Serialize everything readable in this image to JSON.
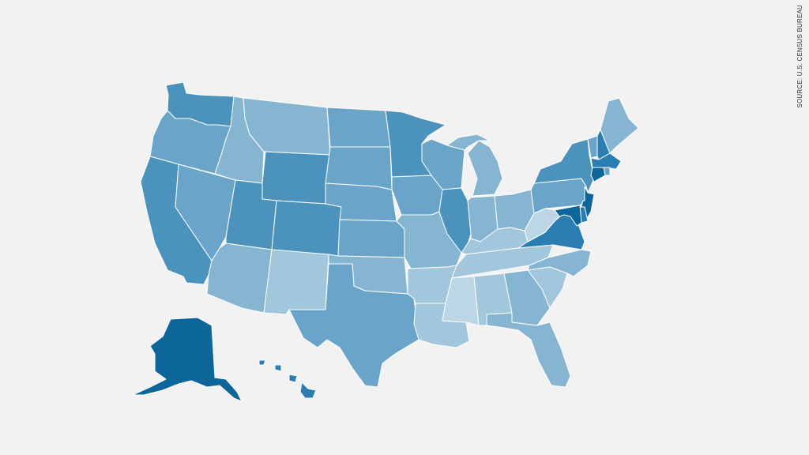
{
  "source": "SOURCE: U.S. CENSUS BUREAU",
  "palette": {
    "background": "#f2f2f2",
    "border": "#ffffff",
    "darkest": "#0d6699",
    "dark": "#2a7eb1",
    "mid_dark": "#4b93bd",
    "mid": "#6aa5c9",
    "mid_light": "#86b5d2",
    "light": "#a2c6dc",
    "lightest": "#bcd6e6"
  },
  "states": [
    {
      "code": "WA",
      "shade": "mid_dark"
    },
    {
      "code": "OR",
      "shade": "mid"
    },
    {
      "code": "CA",
      "shade": "mid_dark"
    },
    {
      "code": "NV",
      "shade": "mid"
    },
    {
      "code": "ID",
      "shade": "mid_light"
    },
    {
      "code": "MT",
      "shade": "mid_light"
    },
    {
      "code": "WY",
      "shade": "mid_dark"
    },
    {
      "code": "UT",
      "shade": "mid_dark"
    },
    {
      "code": "AZ",
      "shade": "mid_light"
    },
    {
      "code": "CO",
      "shade": "mid_dark"
    },
    {
      "code": "NM",
      "shade": "light"
    },
    {
      "code": "ND",
      "shade": "mid"
    },
    {
      "code": "SD",
      "shade": "mid"
    },
    {
      "code": "NE",
      "shade": "mid"
    },
    {
      "code": "KS",
      "shade": "mid"
    },
    {
      "code": "OK",
      "shade": "mid_light"
    },
    {
      "code": "TX",
      "shade": "mid"
    },
    {
      "code": "MN",
      "shade": "mid_dark"
    },
    {
      "code": "IA",
      "shade": "mid"
    },
    {
      "code": "MO",
      "shade": "mid_light"
    },
    {
      "code": "AR",
      "shade": "light"
    },
    {
      "code": "LA",
      "shade": "light"
    },
    {
      "code": "WI",
      "shade": "mid"
    },
    {
      "code": "IL",
      "shade": "mid_dark"
    },
    {
      "code": "MI",
      "shade": "mid_light"
    },
    {
      "code": "IN",
      "shade": "mid_light"
    },
    {
      "code": "OH",
      "shade": "mid_light"
    },
    {
      "code": "KY",
      "shade": "light"
    },
    {
      "code": "TN",
      "shade": "light"
    },
    {
      "code": "MS",
      "shade": "lightest"
    },
    {
      "code": "AL",
      "shade": "light"
    },
    {
      "code": "GA",
      "shade": "mid_light"
    },
    {
      "code": "FL",
      "shade": "mid_light"
    },
    {
      "code": "SC",
      "shade": "light"
    },
    {
      "code": "NC",
      "shade": "mid_light"
    },
    {
      "code": "VA",
      "shade": "dark"
    },
    {
      "code": "WV",
      "shade": "lightest"
    },
    {
      "code": "PA",
      "shade": "mid"
    },
    {
      "code": "NY",
      "shade": "mid_dark"
    },
    {
      "code": "VT",
      "shade": "mid"
    },
    {
      "code": "NH",
      "shade": "dark"
    },
    {
      "code": "ME",
      "shade": "mid_light"
    },
    {
      "code": "MA",
      "shade": "dark"
    },
    {
      "code": "CT",
      "shade": "darkest"
    },
    {
      "code": "RI",
      "shade": "mid"
    },
    {
      "code": "NJ",
      "shade": "darkest"
    },
    {
      "code": "DE",
      "shade": "dark"
    },
    {
      "code": "MD",
      "shade": "darkest"
    },
    {
      "code": "AK",
      "shade": "darkest"
    },
    {
      "code": "HI",
      "shade": "dark"
    }
  ]
}
